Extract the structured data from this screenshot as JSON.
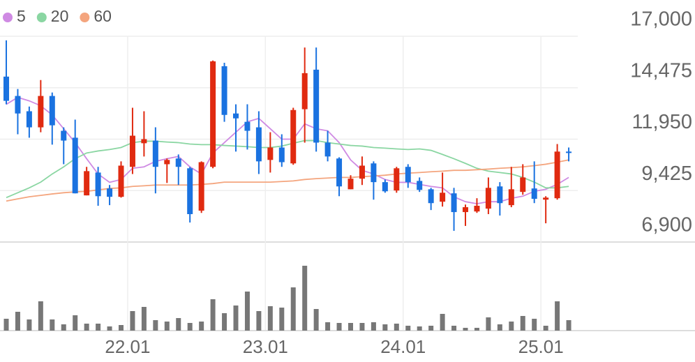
{
  "chart_data": {
    "type": "candlestick",
    "categories": [
      null,
      null,
      null,
      null,
      null,
      null,
      null,
      null,
      null,
      null,
      null,
      "22.01",
      null,
      null,
      null,
      null,
      null,
      null,
      null,
      null,
      null,
      null,
      null,
      "23.01",
      null,
      null,
      null,
      null,
      null,
      null,
      null,
      null,
      null,
      null,
      null,
      "24.01",
      null,
      null,
      null,
      null,
      null,
      null,
      null,
      null,
      null,
      null,
      null,
      "25.01",
      null,
      null
    ],
    "candles": {
      "open": [
        15020,
        14070,
        13320,
        12530,
        14070,
        12360,
        12020,
        9190,
        10310,
        9530,
        9120,
        10590,
        11750,
        11880,
        10720,
        11000,
        10520,
        8440,
        10590,
        15530,
        13210,
        12800,
        12530,
        10930,
        11540,
        10760,
        13420,
        15360,
        11780,
        11000,
        9490,
        10010,
        10760,
        9840,
        9430,
        10590,
        9900,
        9490,
        8880,
        9290,
        8370,
        8400,
        8540,
        9630,
        8710,
        9360,
        9530,
        8980,
        9050,
        11340
      ],
      "high": [
        16800,
        14410,
        13550,
        14850,
        14240,
        12530,
        12910,
        10590,
        10590,
        9700,
        10860,
        13490,
        13320,
        12530,
        11000,
        11200,
        10590,
        10860,
        15810,
        15700,
        13660,
        13660,
        13320,
        12290,
        12190,
        13490,
        16450,
        16450,
        12360,
        11060,
        10180,
        11100,
        10860,
        9970,
        10590,
        10720,
        10070,
        9560,
        10310,
        9560,
        8740,
        9050,
        10070,
        9840,
        10590,
        10720,
        10860,
        9150,
        11710,
        11540
      ],
      "low": [
        13660,
        12190,
        12020,
        12290,
        11680,
        10720,
        9290,
        9190,
        8680,
        8710,
        9080,
        10240,
        11100,
        9290,
        9800,
        9700,
        7860,
        8330,
        10520,
        12800,
        11340,
        11440,
        10240,
        10310,
        10590,
        10690,
        11780,
        11340,
        10860,
        9150,
        9490,
        9700,
        8980,
        9320,
        9320,
        9560,
        9360,
        8470,
        8640,
        7450,
        7690,
        8330,
        8270,
        8200,
        8610,
        9220,
        8810,
        7820,
        8980,
        10860
      ],
      "close": [
        13830,
        13210,
        12530,
        14070,
        12630,
        11880,
        9290,
        10380,
        9150,
        9120,
        10650,
        12120,
        11950,
        10590,
        10930,
        10590,
        8270,
        10820,
        15770,
        13140,
        12970,
        12360,
        10860,
        11540,
        10820,
        13380,
        15190,
        11780,
        11100,
        9630,
        10010,
        10650,
        9840,
        9390,
        10520,
        9840,
        9460,
        8810,
        9320,
        8370,
        8610,
        8680,
        9560,
        8810,
        9490,
        10070,
        9020,
        9080,
        11340,
        11270
      ]
    },
    "up_color": "#e02a10",
    "down_color": "#1a72e0",
    "ma": [
      {
        "name": "5",
        "color": "#cf8ae3",
        "values": [
          13660,
          14000,
          13830,
          13590,
          13140,
          12460,
          11780,
          10990,
          10240,
          9830,
          9970,
          10520,
          10590,
          10860,
          10990,
          11100,
          10590,
          10240,
          11270,
          11780,
          12290,
          12800,
          12970,
          12460,
          11950,
          11950,
          12700,
          12460,
          12360,
          11780,
          10930,
          10420,
          10240,
          9970,
          9830,
          9830,
          9730,
          9630,
          9560,
          9120,
          8880,
          8780,
          8880,
          8880,
          9050,
          9150,
          9390,
          9490,
          9730,
          10070
        ]
      },
      {
        "name": "20",
        "color": "#8ad6a2",
        "values": [
          9080,
          9320,
          9560,
          9840,
          10240,
          10590,
          10990,
          11270,
          11370,
          11440,
          11540,
          11780,
          11850,
          11850,
          11810,
          11780,
          11710,
          11680,
          11680,
          11640,
          11610,
          11580,
          11540,
          11540,
          11610,
          11750,
          11880,
          11880,
          11780,
          11710,
          11640,
          11610,
          11540,
          11510,
          11470,
          11440,
          11470,
          11400,
          11200,
          10990,
          10760,
          10520,
          10380,
          10310,
          10240,
          10070,
          9840,
          9560,
          9560,
          9630
        ]
      },
      {
        "name": "60",
        "color": "#f4a57e",
        "values": [
          8910,
          9020,
          9120,
          9190,
          9260,
          9320,
          9360,
          9390,
          9460,
          9530,
          9560,
          9630,
          9660,
          9700,
          9700,
          9700,
          9700,
          9730,
          9770,
          9840,
          9840,
          9840,
          9840,
          9840,
          9870,
          9900,
          9970,
          10010,
          10040,
          10070,
          10070,
          10110,
          10140,
          10180,
          10240,
          10280,
          10310,
          10350,
          10380,
          10420,
          10420,
          10450,
          10480,
          10520,
          10550,
          10590,
          10650,
          10720,
          10820,
          10930
        ]
      }
    ],
    "volume": {
      "color": "#777777",
      "values": [
        17,
        27,
        16,
        42,
        16,
        9,
        22,
        10,
        10,
        6,
        8,
        28,
        34,
        15,
        13,
        18,
        11,
        13,
        45,
        25,
        36,
        56,
        28,
        35,
        33,
        62,
        93,
        31,
        12,
        11,
        11,
        11,
        12,
        9,
        10,
        7,
        6,
        7,
        24,
        7,
        4,
        4,
        19,
        9,
        13,
        21,
        17,
        7,
        42,
        15
      ]
    },
    "ylim": [
      6900,
      17000
    ],
    "yticks": [
      {
        "value": 17000,
        "label": "17,000"
      },
      {
        "value": 14475,
        "label": "14,475"
      },
      {
        "value": 11950,
        "label": "11,950"
      },
      {
        "value": 9425,
        "label": "9,425"
      },
      {
        "value": 6900,
        "label": "6,900"
      }
    ],
    "grid": true
  }
}
